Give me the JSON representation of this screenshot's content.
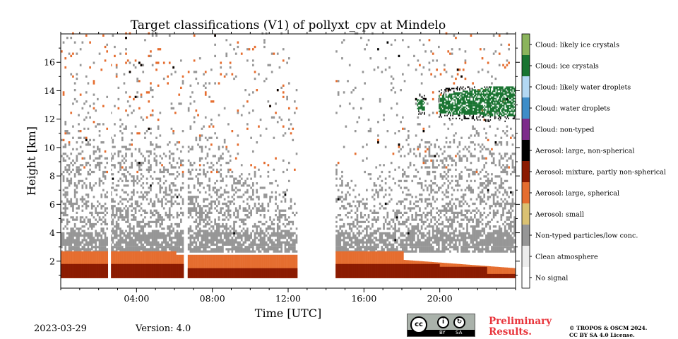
{
  "chart_data": {
    "type": "heatmap",
    "title": "Target classifications (V1) of pollyxt_cpv at Mindelo",
    "xlabel": "Time [UTC]",
    "ylabel": "Height [km]",
    "xlim_hours": [
      0,
      24
    ],
    "ylim_km": [
      0.1,
      18
    ],
    "x_ticks": [
      {
        "value": 4,
        "label": "04:00"
      },
      {
        "value": 8,
        "label": "08:00"
      },
      {
        "value": 12,
        "label": "12:00"
      },
      {
        "value": 16,
        "label": "16:00"
      },
      {
        "value": 20,
        "label": "20:00"
      }
    ],
    "y_ticks": [
      {
        "value": 2,
        "label": "2"
      },
      {
        "value": 4,
        "label": "4"
      },
      {
        "value": 6,
        "label": "6"
      },
      {
        "value": 8,
        "label": "8"
      },
      {
        "value": 10,
        "label": "10"
      },
      {
        "value": 12,
        "label": "12"
      },
      {
        "value": 14,
        "label": "14"
      },
      {
        "value": 16,
        "label": "16"
      }
    ],
    "classes": [
      {
        "code": 11,
        "label": "Cloud: likely ice crystals",
        "color": "#8bb45c"
      },
      {
        "code": 10,
        "label": "Cloud: ice crystals",
        "color": "#197431"
      },
      {
        "code": 9,
        "label": "Cloud: likely water droplets",
        "color": "#b3d8f3"
      },
      {
        "code": 8,
        "label": "Cloud: water droplets",
        "color": "#3e8dc8"
      },
      {
        "code": 7,
        "label": "Cloud: non-typed",
        "color": "#7d2c8b"
      },
      {
        "code": 6,
        "label": "Aerosol: large, non-spherical",
        "color": "#000000"
      },
      {
        "code": 5,
        "label": "Aerosol: mixture, partly non-spherical",
        "color": "#8b1b01"
      },
      {
        "code": 4,
        "label": "Aerosol: large, spherical",
        "color": "#e56d2f"
      },
      {
        "code": 3,
        "label": "Aerosol: small",
        "color": "#dac172"
      },
      {
        "code": 2,
        "label": "Non-typed particles/low conc.",
        "color": "#969696"
      },
      {
        "code": 1,
        "label": "Clean atmosphere",
        "color": "#ececec"
      },
      {
        "code": 0,
        "label": "No signal",
        "color": "#ffffff"
      }
    ],
    "no_data_intervals_hours": [
      [
        2.5,
        2.65
      ],
      [
        6.5,
        6.65
      ],
      [
        12.5,
        14.5
      ]
    ],
    "features": [
      {
        "class": "Aerosol: mixture, partly non-spherical",
        "t_start": 0,
        "t_end": 24,
        "base_km": 0.8,
        "top_km": 1.8
      },
      {
        "class": "Aerosol: large, spherical",
        "t_start": 0,
        "t_end": 24,
        "base_km": 1.6,
        "top_km": 2.7
      },
      {
        "class": "Non-typed particles/low conc.",
        "t_start": 0,
        "t_end": 24,
        "base_km": 2.5,
        "top_km": 12
      },
      {
        "class": "Cloud: ice crystals",
        "t_start": 18.8,
        "t_end": 24,
        "base_km": 11.8,
        "top_km": 14.2
      }
    ]
  },
  "footer": {
    "date": "2023-03-29",
    "version": "Version: 4.0",
    "license_badge": {
      "cc": "cc",
      "by": "BY",
      "sa": "SA"
    },
    "preliminary_line1": "Preliminary",
    "preliminary_line2": "Results.",
    "copyright_line1": "© TROPOS & OSCM 2024.",
    "copyright_line2": "CC BY SA 4.0 License."
  }
}
